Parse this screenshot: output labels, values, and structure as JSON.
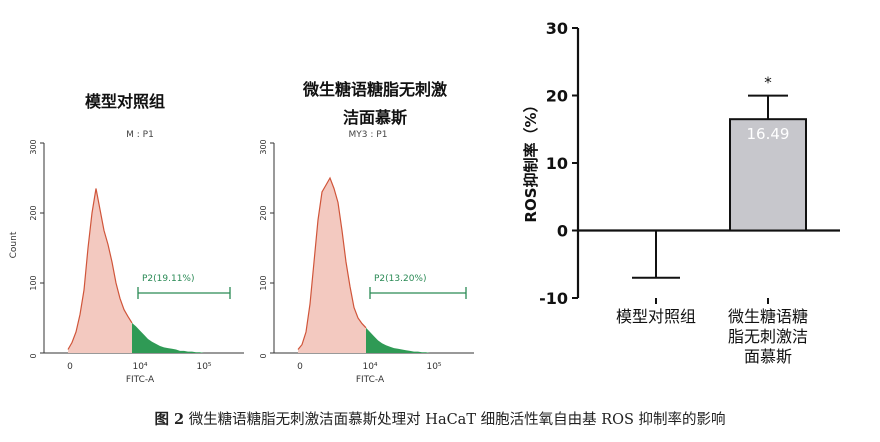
{
  "flow_panels": [
    {
      "title": "模型对照组",
      "sample_label": "M : P1",
      "gate_label": "P2(19.11%)",
      "gate_percent": 19.11,
      "ylabel": "Count",
      "xlabel": "FITC-A",
      "y_ticks": [
        "0",
        "100",
        "200",
        "300"
      ],
      "x_ticks": [
        "0",
        "10⁴",
        "10⁵"
      ],
      "histogram": {
        "x": [
          0.12,
          0.14,
          0.16,
          0.18,
          0.2,
          0.22,
          0.24,
          0.26,
          0.28,
          0.3,
          0.32,
          0.34,
          0.36,
          0.38,
          0.4,
          0.42,
          0.44,
          0.46,
          0.48,
          0.5,
          0.52,
          0.54,
          0.56,
          0.58,
          0.6,
          0.62,
          0.64,
          0.66,
          0.68,
          0.7,
          0.72,
          0.74,
          0.76,
          0.78,
          0.8
        ],
        "counts": [
          5,
          15,
          30,
          55,
          90,
          150,
          200,
          235,
          205,
          175,
          155,
          130,
          100,
          78,
          62,
          52,
          43,
          38,
          32,
          26,
          20,
          16,
          13,
          10,
          8,
          7,
          6,
          5,
          3,
          3,
          2,
          2,
          1,
          1,
          0
        ],
        "gate_start": 0.44
      }
    },
    {
      "title_line1": "微生糖语糖脂无刺激",
      "title_line2": "洁面慕斯",
      "sample_label": "MY3 : P1",
      "gate_label": "P2(13.20%)",
      "gate_percent": 13.2,
      "ylabel": "Count",
      "xlabel": "FITC-A",
      "y_ticks": [
        "0",
        "100",
        "200",
        "300"
      ],
      "x_ticks": [
        "0",
        "10⁴",
        "10⁵"
      ],
      "histogram": {
        "x": [
          0.12,
          0.14,
          0.16,
          0.18,
          0.2,
          0.22,
          0.24,
          0.26,
          0.28,
          0.3,
          0.32,
          0.34,
          0.36,
          0.38,
          0.4,
          0.42,
          0.44,
          0.46,
          0.48,
          0.5,
          0.52,
          0.54,
          0.56,
          0.58,
          0.6,
          0.62,
          0.64,
          0.66,
          0.68,
          0.7,
          0.72,
          0.74,
          0.76,
          0.78,
          0.8
        ],
        "counts": [
          5,
          12,
          30,
          70,
          130,
          190,
          230,
          240,
          250,
          235,
          215,
          175,
          130,
          95,
          65,
          50,
          42,
          36,
          30,
          24,
          18,
          14,
          11,
          9,
          7,
          6,
          5,
          4,
          3,
          2,
          2,
          1,
          1,
          0,
          0
        ],
        "gate_start": 0.46
      }
    }
  ],
  "chart_data": {
    "type": "bar",
    "categories": [
      "模型对照组",
      "微生糖语糖脂无刺激洁面慕斯"
    ],
    "category_lines": [
      [
        "模型对照组"
      ],
      [
        "微生糖语糖",
        "脂无刺激洁",
        "面慕斯"
      ]
    ],
    "values": [
      -7,
      16.49
    ],
    "errors": [
      null,
      3.5
    ],
    "bar_labels": [
      "",
      "16.49"
    ],
    "significance": [
      "",
      "*"
    ],
    "ylabel": "ROS抑制率（%）",
    "ylim": [
      -10,
      30
    ],
    "yticks": [
      -10,
      0,
      10,
      20,
      30
    ],
    "bar_color": "#c7c7cc",
    "grid": false
  },
  "caption": {
    "figure_label": "图 2",
    "text": "微生糖语糖脂无刺激洁面慕斯处理对 HaCaT 细胞活性氧自由基 ROS 抑制率的影响"
  }
}
